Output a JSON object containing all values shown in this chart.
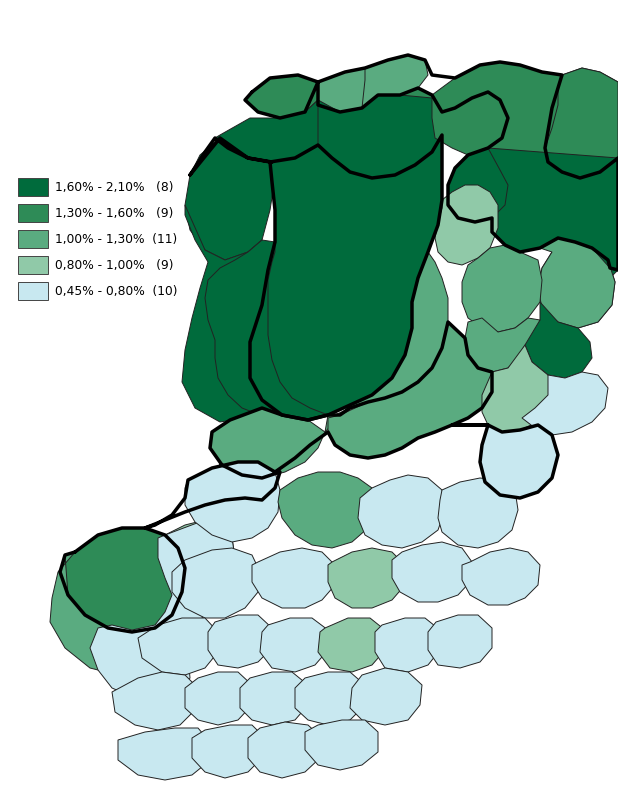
{
  "legend_entries": [
    {
      "label": "1,60% - 2,10%   (8)",
      "color": "#006b3c"
    },
    {
      "label": "1,30% - 1,60%   (9)",
      "color": "#2e8b57"
    },
    {
      "label": "1,00% - 1,30%  (11)",
      "color": "#5aab80"
    },
    {
      "label": "0,80% - 1,00%   (9)",
      "color": "#90c9a8"
    },
    {
      "label": "0,45% - 0,80%  (10)",
      "color": "#c8e8f0"
    }
  ],
  "bg_color": "#ffffff",
  "figsize": [
    6.18,
    8.01
  ],
  "dpi": 100
}
